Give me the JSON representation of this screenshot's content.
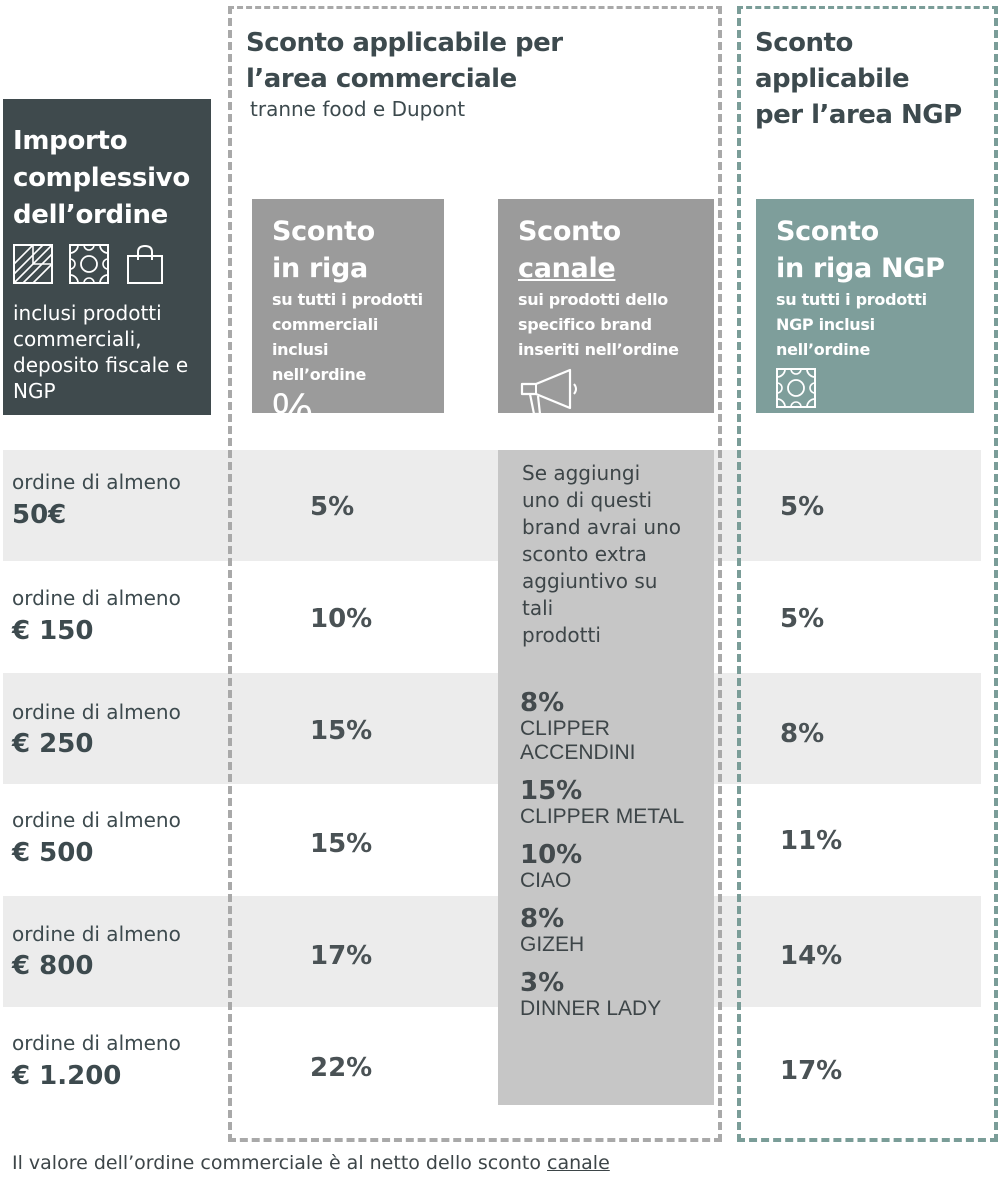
{
  "left_header": {
    "title_lines": [
      "Importo",
      "complessivo",
      "dell’ordine"
    ],
    "icons": [
      "wood-panel-icon",
      "pattern-tile-icon",
      "shopping-bag-icon"
    ],
    "description_lines": [
      "inclusi prodotti",
      "commerciali,",
      "deposito fiscale e",
      "NGP"
    ]
  },
  "commercial_header": {
    "title_lines": [
      "Sconto applicabile per",
      "l’area commerciale"
    ],
    "subtitle": "tranne food e Dupont"
  },
  "ngp_header": {
    "title_lines": [
      "Sconto applicabile",
      "per l’area NGP"
    ]
  },
  "boxes": {
    "riga": {
      "title_lines": [
        "Sconto",
        "in riga"
      ],
      "desc_lines": [
        "su tutti i prodotti",
        "commerciali inclusi",
        "nell’ordine"
      ],
      "icon": "%",
      "color": "#9b9b9b"
    },
    "canale": {
      "title_lines": [
        "Sconto",
        "canale"
      ],
      "desc_lines": [
        "sui prodotti dello",
        "specifico brand",
        "inseriti nell’ordine"
      ],
      "icon": "megaphone-icon",
      "color": "#9b9b9b"
    },
    "ngp": {
      "title_lines": [
        "Sconto",
        "in riga NGP"
      ],
      "desc_lines": [
        "su tutti i prodotti",
        "NGP inclusi",
        "nell’ordine"
      ],
      "icon": "pattern-tile-icon",
      "color": "#7e9e9b"
    }
  },
  "rows": [
    {
      "label": "ordine di almeno",
      "amount": "50€",
      "riga": "5%",
      "ngp": "5%"
    },
    {
      "label": "ordine di almeno",
      "amount": "€ 150",
      "riga": "10%",
      "ngp": "5%"
    },
    {
      "label": "ordine di almeno",
      "amount": "€ 250",
      "riga": "15%",
      "ngp": "8%"
    },
    {
      "label": "ordine di almeno",
      "amount": "€ 500",
      "riga": "15%",
      "ngp": "11%"
    },
    {
      "label": "ordine di almeno",
      "amount": "€ 800",
      "riga": "17%",
      "ngp": "14%"
    },
    {
      "label": "ordine di almeno",
      "amount": "€ 1.200",
      "riga": "22%",
      "ngp": "17%"
    }
  ],
  "canale_panel": {
    "intro_lines": [
      "Se aggiungi",
      "uno di questi",
      "brand avrai uno",
      "sconto extra",
      "aggiuntivo su tali",
      "prodotti"
    ],
    "brands": [
      {
        "pct": "8%",
        "name_lines": [
          "CLIPPER",
          "ACCENDINI"
        ]
      },
      {
        "pct": "15%",
        "name_lines": [
          "CLIPPER METAL"
        ]
      },
      {
        "pct": "10%",
        "name_lines": [
          "CIAO"
        ]
      },
      {
        "pct": "8%",
        "name_lines": [
          "GIZEH"
        ]
      },
      {
        "pct": "3%",
        "name_lines": [
          "DINNER LADY"
        ]
      }
    ],
    "color": "#c6c6c6"
  },
  "footer": {
    "text": "Il valore dell’ordine commerciale è al netto dello sconto ",
    "underlined": "canale"
  }
}
